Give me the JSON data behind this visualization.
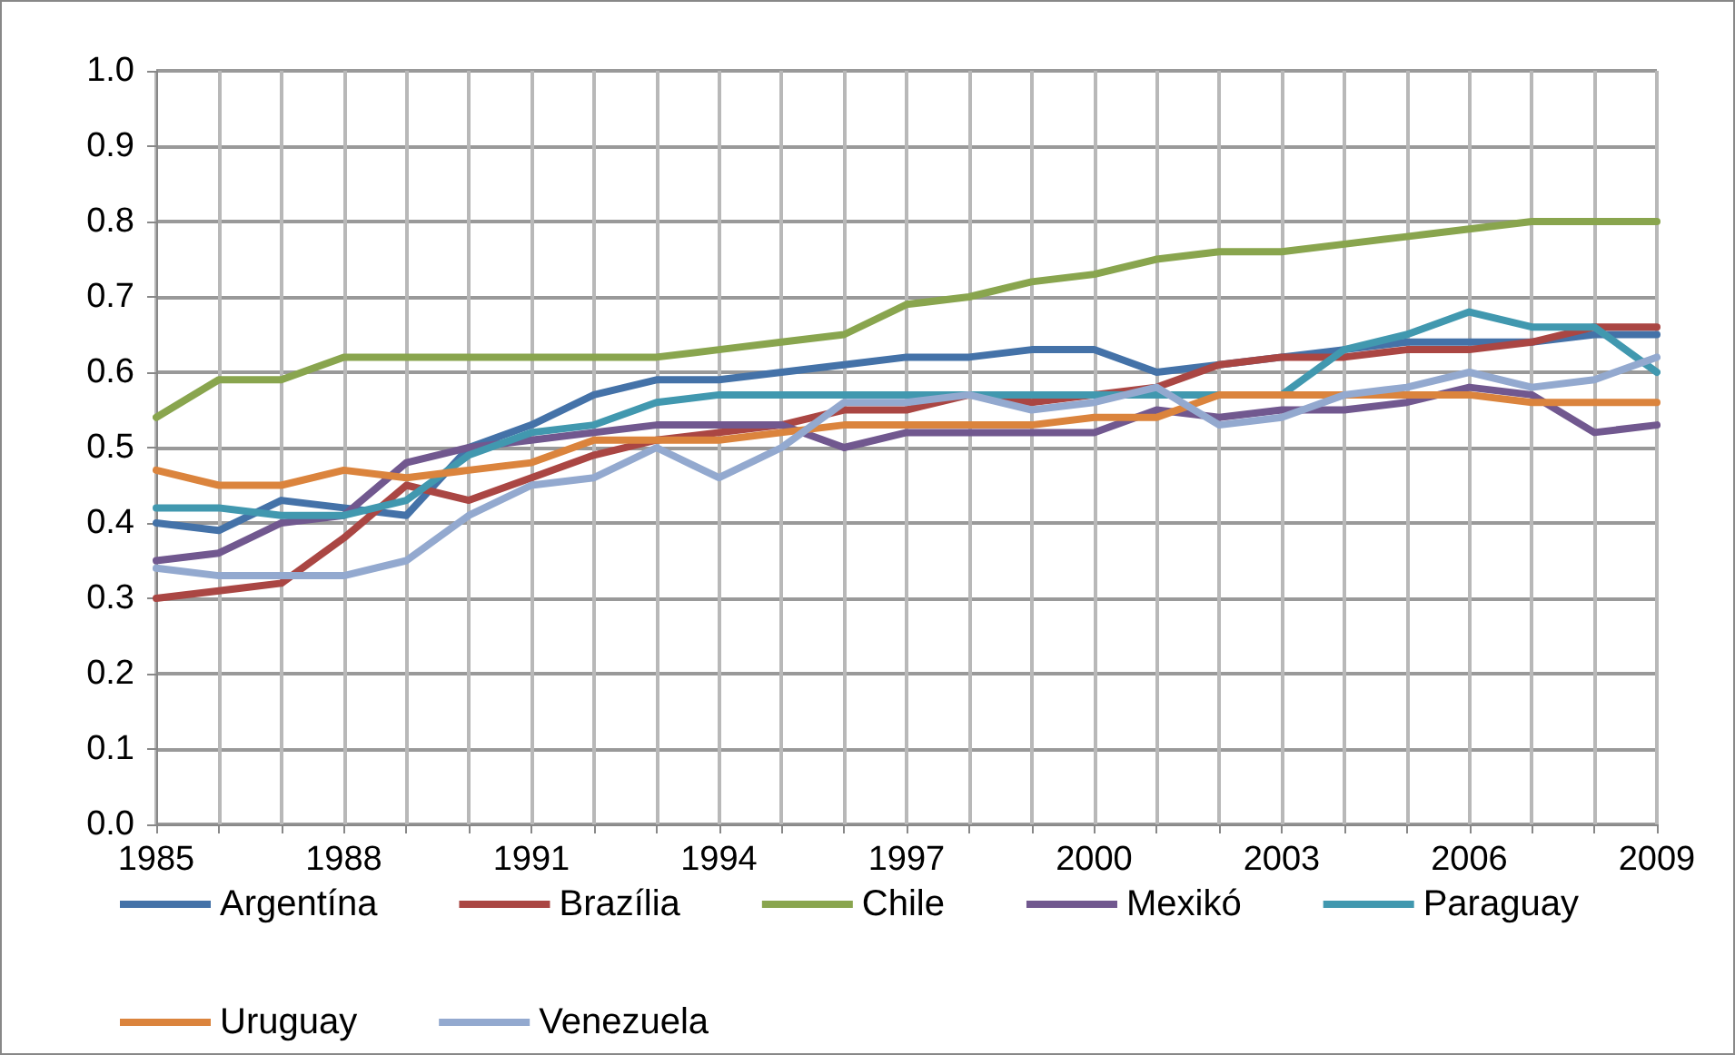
{
  "chart_data": {
    "type": "line",
    "x": [
      1985,
      1986,
      1987,
      1988,
      1989,
      1990,
      1991,
      1992,
      1993,
      1994,
      1995,
      1996,
      1997,
      1998,
      1999,
      2000,
      2001,
      2002,
      2003,
      2004,
      2005,
      2006,
      2007,
      2008,
      2009
    ],
    "series": [
      {
        "name": "Argentína",
        "color": "#4472a8",
        "values": [
          0.4,
          0.39,
          0.43,
          0.42,
          0.41,
          0.5,
          0.53,
          0.57,
          0.59,
          0.59,
          0.6,
          0.61,
          0.62,
          0.62,
          0.63,
          0.63,
          0.6,
          0.61,
          0.62,
          0.63,
          0.64,
          0.64,
          0.64,
          0.65,
          0.65
        ]
      },
      {
        "name": "Brazília",
        "color": "#aa4643",
        "values": [
          0.3,
          0.31,
          0.32,
          0.38,
          0.45,
          0.43,
          0.46,
          0.49,
          0.51,
          0.52,
          0.53,
          0.55,
          0.55,
          0.57,
          0.56,
          0.57,
          0.58,
          0.61,
          0.62,
          0.62,
          0.63,
          0.63,
          0.64,
          0.66,
          0.66
        ]
      },
      {
        "name": "Chile",
        "color": "#89a54e",
        "values": [
          0.54,
          0.59,
          0.59,
          0.62,
          0.62,
          0.62,
          0.62,
          0.62,
          0.62,
          0.63,
          0.64,
          0.65,
          0.69,
          0.7,
          0.72,
          0.73,
          0.75,
          0.76,
          0.76,
          0.77,
          0.78,
          0.79,
          0.8,
          0.8,
          0.8
        ]
      },
      {
        "name": "Mexikó",
        "color": "#71588f",
        "values": [
          0.35,
          0.36,
          0.4,
          0.41,
          0.48,
          0.5,
          0.51,
          0.52,
          0.53,
          0.53,
          0.53,
          0.5,
          0.52,
          0.52,
          0.52,
          0.52,
          0.55,
          0.54,
          0.55,
          0.55,
          0.56,
          0.58,
          0.57,
          0.52,
          0.53
        ]
      },
      {
        "name": "Paraguay",
        "color": "#4198af",
        "values": [
          0.42,
          0.42,
          0.41,
          0.41,
          0.43,
          0.49,
          0.52,
          0.53,
          0.56,
          0.57,
          0.57,
          0.57,
          0.57,
          0.57,
          0.57,
          0.57,
          0.57,
          0.57,
          0.57,
          0.63,
          0.65,
          0.68,
          0.66,
          0.66,
          0.6
        ]
      },
      {
        "name": "Uruguay",
        "color": "#db843d",
        "values": [
          0.47,
          0.45,
          0.45,
          0.47,
          0.46,
          0.47,
          0.48,
          0.51,
          0.51,
          0.51,
          0.52,
          0.53,
          0.53,
          0.53,
          0.53,
          0.54,
          0.54,
          0.57,
          0.57,
          0.57,
          0.57,
          0.57,
          0.56,
          0.56,
          0.56
        ]
      },
      {
        "name": "Venezuela",
        "color": "#93a9cf",
        "values": [
          0.34,
          0.33,
          0.33,
          0.33,
          0.35,
          0.41,
          0.45,
          0.46,
          0.5,
          0.46,
          0.5,
          0.56,
          0.56,
          0.57,
          0.55,
          0.56,
          0.58,
          0.53,
          0.54,
          0.57,
          0.58,
          0.6,
          0.58,
          0.59,
          0.62
        ]
      }
    ],
    "xlim": [
      1985,
      2009
    ],
    "xticks": [
      1985,
      {
        "value": 1986,
        "label": null
      },
      {
        "value": 1987,
        "label": null
      },
      1988,
      {
        "value": 1989,
        "label": null
      },
      {
        "value": 1990,
        "label": null
      },
      1991,
      {
        "value": 1992,
        "label": null
      },
      {
        "value": 1993,
        "label": null
      },
      1994,
      {
        "value": 1995,
        "label": null
      },
      {
        "value": 1996,
        "label": null
      },
      1997,
      {
        "value": 1998,
        "label": null
      },
      {
        "value": 1999,
        "label": null
      },
      2000,
      {
        "value": 2001,
        "label": null
      },
      {
        "value": 2002,
        "label": null
      },
      2003,
      {
        "value": 2004,
        "label": null
      },
      {
        "value": 2005,
        "label": null
      },
      2006,
      {
        "value": 2007,
        "label": null
      },
      {
        "value": 2008,
        "label": null
      },
      2009
    ],
    "ylim": [
      0,
      1
    ],
    "yticks": [
      {
        "value": 0,
        "label": "0.0"
      },
      {
        "value": 0.1,
        "label": "0.1"
      },
      {
        "value": 0.2,
        "label": "0.2"
      },
      {
        "value": 0.3,
        "label": "0.3"
      },
      {
        "value": 0.4,
        "label": "0.4"
      },
      {
        "value": 0.5,
        "label": "0.5"
      },
      {
        "value": 0.6,
        "label": "0.6"
      },
      {
        "value": 0.7,
        "label": "0.7"
      },
      {
        "value": 0.8,
        "label": "0.8"
      },
      {
        "value": 0.9,
        "label": "0.9"
      },
      {
        "value": 1,
        "label": "1.0"
      }
    ],
    "grid": true,
    "legend": "bottom",
    "marker": "none",
    "line_style": "solid"
  }
}
